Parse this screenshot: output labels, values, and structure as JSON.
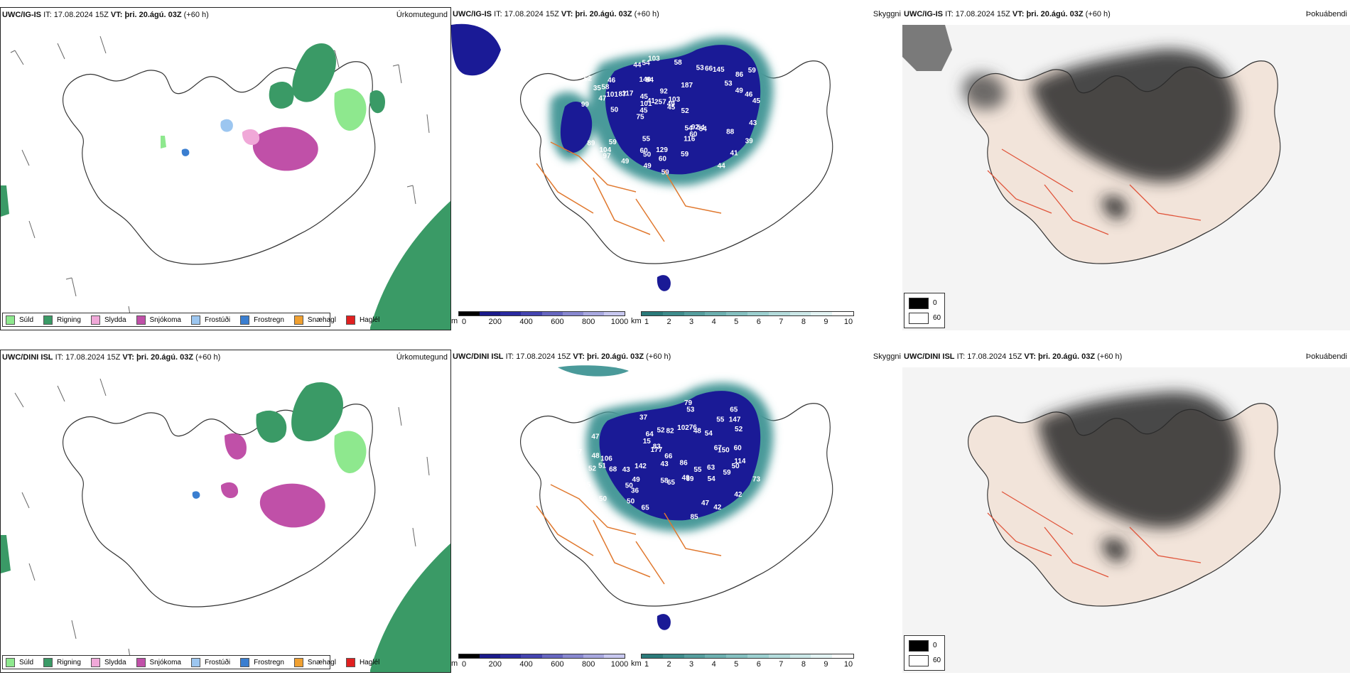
{
  "run_info": {
    "issue_label": "IT:",
    "issue_time": "17.08.2024 15Z",
    "valid_label": "VT:",
    "valid_time": "þri. 20.ágú. 03Z",
    "lead": "(+60 h)"
  },
  "rows": [
    {
      "model": "UWC/IG-IS",
      "panels": {
        "precip_type": {
          "title": "Úrkomutegund"
        },
        "visibility": {
          "title": "Skyggni"
        },
        "fog": {
          "title": "Þokuábendi"
        }
      },
      "cloud_labels": [
        "99",
        "86",
        "75",
        "187",
        "140",
        "92",
        "89",
        "117",
        "97",
        "94",
        "103",
        "54",
        "62",
        "54",
        "45",
        "54",
        "49",
        "45",
        "60",
        "101",
        "46",
        "53",
        "59",
        "44",
        "41",
        "54",
        "59",
        "87",
        "47",
        "116",
        "46",
        "49",
        "50",
        "45",
        "53",
        "59",
        "60",
        "59",
        "104",
        "129",
        "145",
        "103",
        "50",
        "58",
        "66",
        "58",
        "44",
        "41",
        "39",
        "55",
        "49",
        "92",
        "101",
        "35",
        "43",
        "45",
        "60",
        "257",
        "52",
        "88",
        "49"
      ]
    },
    {
      "model": "UWC/DINI ISL",
      "panels": {
        "precip_type": {
          "title": "Úrkomutegund"
        },
        "visibility": {
          "title": "Skyggni"
        },
        "fog": {
          "title": "Þokuábendi"
        }
      },
      "cloud_labels": [
        "51",
        "49",
        "42",
        "47",
        "50",
        "43",
        "54",
        "52",
        "48",
        "42",
        "36",
        "37",
        "86",
        "15",
        "63",
        "66",
        "47",
        "65",
        "82",
        "67",
        "73",
        "114",
        "48",
        "68",
        "43",
        "177",
        "147",
        "69",
        "52",
        "50",
        "76",
        "64",
        "59",
        "50",
        "47",
        "55",
        "85",
        "49",
        "65",
        "50",
        "79",
        "142",
        "106",
        "52",
        "53",
        "102",
        "58",
        "55",
        "60",
        "54",
        "150",
        "15",
        "65",
        "83"
      ]
    }
  ],
  "legends": {
    "precip_types": [
      {
        "label": "Súld",
        "color": "#8ee88e"
      },
      {
        "label": "Rigning",
        "color": "#3a9a66"
      },
      {
        "label": "Slydda",
        "color": "#f0a8d8"
      },
      {
        "label": "Snjókoma",
        "color": "#c050a8"
      },
      {
        "label": "Frostúði",
        "color": "#9cc6f0"
      },
      {
        "label": "Frostregn",
        "color": "#3a7ed0"
      },
      {
        "label": "Snæhagl",
        "color": "#f0a030"
      },
      {
        "label": "Haglél",
        "color": "#e02020"
      }
    ],
    "cloud_base": {
      "unit": "m",
      "ticks": [
        "0",
        "200",
        "400",
        "600",
        "800",
        "1000"
      ],
      "colors": [
        "#000000",
        "#1a1a8a",
        "#2a2aa0",
        "#4444b0",
        "#6666c0",
        "#8888d0",
        "#a8a8e0",
        "#c8c8f0"
      ]
    },
    "visibility": {
      "unit": "km",
      "ticks": [
        "1",
        "2",
        "3",
        "4",
        "5",
        "6",
        "7",
        "8",
        "9",
        "10"
      ],
      "colors": [
        "#2a7a7a",
        "#3e8c8c",
        "#559e9e",
        "#6cb0b0",
        "#84c0c0",
        "#9cd0d0",
        "#b4dcdc",
        "#cce8e8",
        "#e4f4f4",
        "#ffffff"
      ]
    },
    "fog": {
      "items": [
        {
          "label": "0",
          "color": "#000000"
        },
        {
          "label": "60",
          "color": "#ffffff"
        }
      ]
    }
  },
  "colors": {
    "outline": "#333333",
    "roads": "#e0782e",
    "precip_rain": "#3a9a66",
    "precip_snow": "#c050a8",
    "cloud_dark": "#1a1a96",
    "vis_teal": "#4a9a9a",
    "fog_land": "#f2e4da",
    "fog_dark": "#2a2a2a"
  }
}
